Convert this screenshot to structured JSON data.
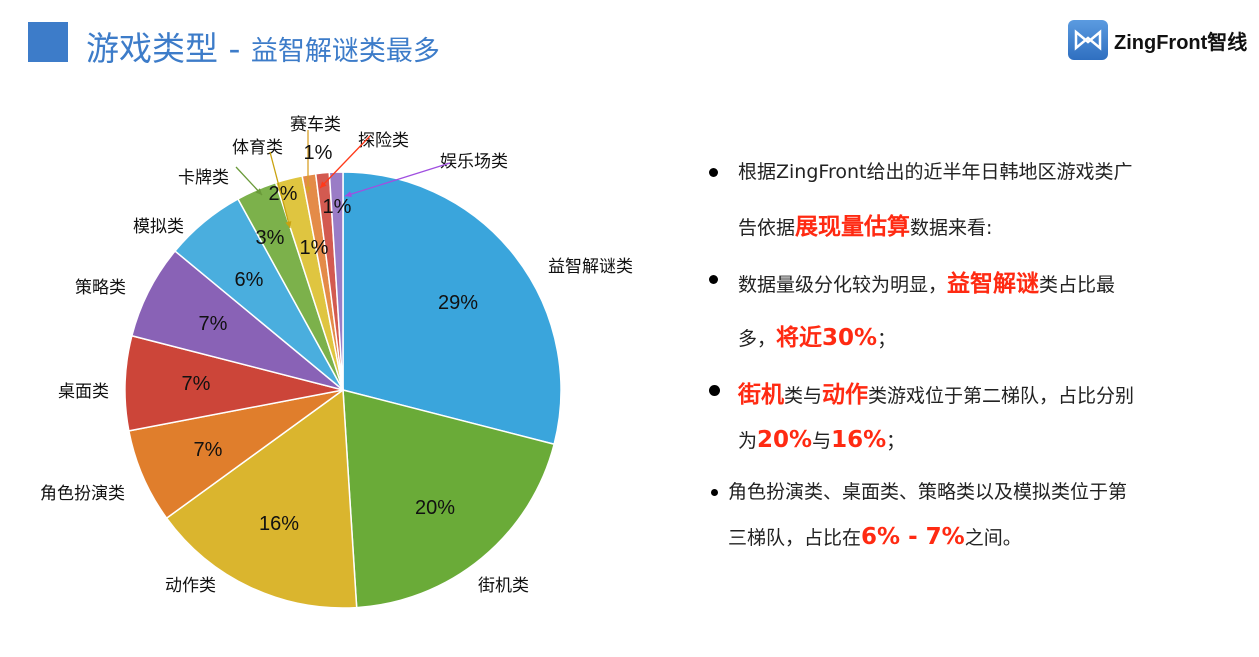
{
  "header": {
    "title_main": "游戏类型",
    "title_sep": " - ",
    "title_sub": "益智解谜类最多",
    "logo_text": "ZingFront智线"
  },
  "chart_data": {
    "type": "pie",
    "title": "",
    "start": "12 o'clock",
    "direction": "clockwise",
    "slices": [
      {
        "name": "益智解谜类",
        "value": 29,
        "label": "29%",
        "color": "#3aa5dc"
      },
      {
        "name": "街机类",
        "value": 20,
        "label": "20%",
        "color": "#6aab38"
      },
      {
        "name": "动作类",
        "value": 16,
        "label": "16%",
        "color": "#dab52e"
      },
      {
        "name": "角色扮演类",
        "value": 7,
        "label": "7%",
        "color": "#e07e2c"
      },
      {
        "name": "桌面类",
        "value": 7,
        "label": "7%",
        "color": "#cc4539"
      },
      {
        "name": "策略类",
        "value": 7,
        "label": "7%",
        "color": "#8962b6"
      },
      {
        "name": "模拟类",
        "value": 6,
        "label": "6%",
        "color": "#4aaede"
      },
      {
        "name": "卡牌类",
        "value": 3,
        "label": "3%",
        "color": "#7cb14b"
      },
      {
        "name": "体育类",
        "value": 2,
        "label": "2%",
        "color": "#dfc540"
      },
      {
        "name": "赛车类",
        "value": 1,
        "label": "1%",
        "color": "#e48b48"
      },
      {
        "name": "探险类",
        "value": 1,
        "label": "1%",
        "color": "#d35a50"
      },
      {
        "name": "娱乐场类",
        "value": 1,
        "label": "1%",
        "color": "#9a7cc6"
      }
    ]
  },
  "bullets": [
    {
      "lines": [
        [
          {
            "t": "根据ZingFront给出的近半年日韩地区游戏类广"
          }
        ],
        [
          {
            "t": "告依据"
          },
          {
            "t": "展现量估算",
            "h": true
          },
          {
            "t": "数据来看:"
          }
        ]
      ]
    },
    {
      "lines": [
        [
          {
            "t": "数据量级分化较为明显，"
          },
          {
            "t": "益智解谜",
            "h": true
          },
          {
            "t": "类占比最"
          }
        ],
        [
          {
            "t": "多，"
          },
          {
            "t": "将近30%",
            "h": true
          },
          {
            "t": "；"
          }
        ]
      ]
    },
    {
      "lines": [
        [
          {
            "t": "街机",
            "h": true
          },
          {
            "t": "类与"
          },
          {
            "t": "动作",
            "h": true
          },
          {
            "t": "类游戏位于第二梯队，占比分别"
          }
        ],
        [
          {
            "t": "为"
          },
          {
            "t": "20%",
            "h": true
          },
          {
            "t": "与"
          },
          {
            "t": "16%",
            "h": true
          },
          {
            "t": "；"
          }
        ]
      ]
    },
    {
      "lines": [
        [
          {
            "t": "角色扮演类、桌面类、策略类以及模拟类位于第"
          }
        ],
        [
          {
            "t": "三梯队，占比在"
          },
          {
            "t": "6% - 7%",
            "h": true
          },
          {
            "t": "之间。"
          }
        ]
      ]
    }
  ]
}
